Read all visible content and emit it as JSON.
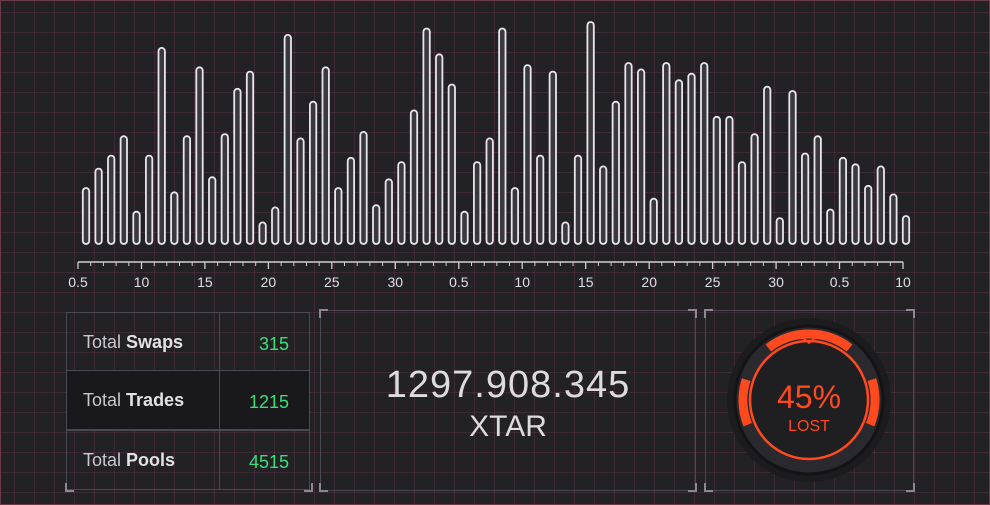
{
  "chart_data": {
    "type": "bar",
    "x_tick_labels": [
      "0.5",
      "10",
      "15",
      "20",
      "25",
      "30",
      "0.5",
      "10",
      "15",
      "20",
      "25",
      "30",
      "0.5",
      "10"
    ],
    "values": [
      26,
      35,
      41,
      50,
      15,
      41,
      91,
      24,
      50,
      82,
      31,
      51,
      72,
      80,
      10,
      17,
      97,
      49,
      66,
      82,
      26,
      40,
      52,
      18,
      30,
      38,
      62,
      100,
      88,
      74,
      15,
      38,
      49,
      100,
      26,
      83,
      41,
      80,
      10,
      41,
      103,
      36,
      66,
      84,
      81,
      21,
      84,
      76,
      79,
      84,
      59,
      59,
      38,
      51,
      73,
      12,
      71,
      42,
      50,
      16,
      40,
      37,
      27,
      36,
      23,
      13
    ],
    "color": "#e8e6ea"
  },
  "stats": {
    "rows": [
      {
        "prefix": "Total",
        "label": "Swaps",
        "value": "315"
      },
      {
        "prefix": "Total",
        "label": "Trades",
        "value": "1215"
      },
      {
        "prefix": "Total",
        "label": "Pools",
        "value": "4515"
      }
    ],
    "value_color": "#39e07a"
  },
  "balance": {
    "amount": "1297.908.345",
    "unit": "XTAR"
  },
  "gauge": {
    "percent": 45,
    "percent_label": "45%",
    "status": "LOST",
    "accent": "#ff4a1f",
    "icon": "chevron-down-icon"
  }
}
